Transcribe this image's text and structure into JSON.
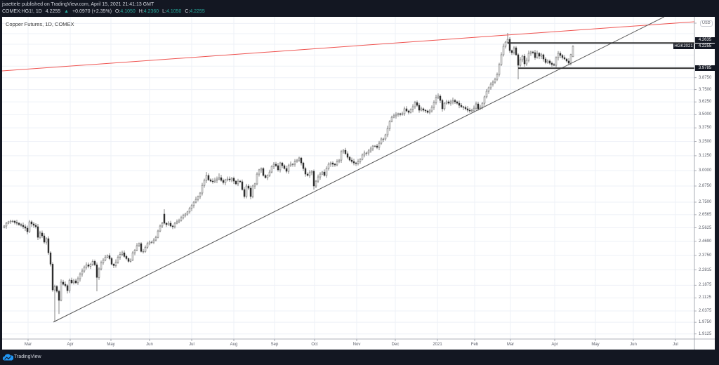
{
  "header": {
    "publisher_line": "jsaettele published on TradingView.com, April 15, 2021 21:41:13 GMT",
    "symbol": "COMEX:HG1!, 1D",
    "last": "4.2255",
    "arrow": "▲",
    "change": "+0.0970 (+2.35%)",
    "ohlc": [
      {
        "k": "O:",
        "v": "4.1050"
      },
      {
        "k": "H:",
        "v": "4.2360"
      },
      {
        "k": "L:",
        "v": "4.1050"
      },
      {
        "k": "C:",
        "v": "4.2255"
      }
    ]
  },
  "chart": {
    "title": "Copper Futures, 1D, COMEX",
    "currency": "USD",
    "price_boxes": {
      "ray_high": "4.2635",
      "last_price": "4.2255",
      "contract": "HGK2021",
      "ray_low": "3.9785"
    }
  },
  "footer": {
    "brand": "TradingView"
  },
  "colors": {
    "background": "#131722",
    "up_value": "#26a69a",
    "resistance_line": "#ef5350",
    "trendline": "#555555",
    "ray": "#333333"
  },
  "chart_data": {
    "type": "bar",
    "style": "candlestick (daily OHLC, approx. closes read from chart)",
    "title": "Copper Futures, 1D, COMEX",
    "xlabel": "",
    "ylabel": "USD",
    "y_scale": "log",
    "ylim": [
      1.886,
      4.583
    ],
    "grid": true,
    "legend": "none",
    "x_ticks": [
      "Mar",
      "Apr",
      "May",
      "Jun",
      "Jul",
      "Aug",
      "Sep",
      "Oct",
      "Nov",
      "Dec",
      "2021",
      "Feb",
      "Mar",
      "Apr",
      "May",
      "Jun",
      "Jul"
    ],
    "y_ticks": [
      "3.8750",
      "3.7500",
      "3.6250",
      "3.5000",
      "3.3750",
      "3.2500",
      "3.1250",
      "3.0000",
      "2.8750",
      "2.7500",
      "2.6565",
      "2.5625",
      "2.4690",
      "2.3750",
      "2.2815",
      "2.1875",
      "2.1125",
      "2.0375",
      "1.9750",
      "1.9125"
    ],
    "series": [
      {
        "name": "COMEX:HG1! daily close (approx)",
        "values": [
          2.575,
          2.595,
          2.605,
          2.61,
          2.61,
          2.6,
          2.595,
          2.585,
          2.58,
          2.57,
          2.56,
          2.535,
          2.605,
          2.59,
          2.58,
          2.57,
          2.496,
          2.526,
          2.506,
          2.463,
          2.487,
          2.392,
          2.318,
          2.159,
          2.18,
          2.151,
          2.098,
          2.206,
          2.193,
          2.185,
          2.155,
          2.218,
          2.202,
          2.214,
          2.202,
          2.227,
          2.257,
          2.275,
          2.3,
          2.314,
          2.305,
          2.318,
          2.336,
          2.314,
          2.235,
          2.288,
          2.327,
          2.345,
          2.364,
          2.373,
          2.354,
          2.318,
          2.309,
          2.332,
          2.364,
          2.382,
          2.392,
          2.368,
          2.354,
          2.336,
          2.345,
          2.392,
          2.41,
          2.439,
          2.453,
          2.401,
          2.401,
          2.429,
          2.453,
          2.463,
          2.463,
          2.477,
          2.496,
          2.54,
          2.575,
          2.595,
          2.595,
          2.585,
          2.595,
          2.575,
          2.57,
          2.595,
          2.605,
          2.615,
          2.635,
          2.651,
          2.661,
          2.677,
          2.703,
          2.724,
          2.75,
          2.771,
          2.793,
          2.82,
          2.88,
          2.92,
          2.96,
          2.925,
          2.914,
          2.909,
          2.92,
          2.931,
          2.942,
          2.92,
          2.903,
          2.925,
          2.931,
          2.925,
          2.937,
          2.914,
          2.892,
          2.914,
          2.909,
          2.847,
          2.793,
          2.875,
          2.858,
          2.793,
          2.875,
          2.892,
          2.971,
          3.006,
          3.017,
          2.96,
          2.942,
          2.96,
          2.988,
          3.035,
          3.053,
          3.041,
          3.006,
          3.064,
          3.041,
          3.017,
          2.994,
          3.041,
          3.053,
          3.053,
          3.076,
          3.088,
          3.106,
          3.064,
          3.017,
          2.971,
          2.96,
          2.983,
          2.994,
          2.875,
          2.914,
          2.948,
          2.971,
          2.988,
          2.96,
          3.017,
          3.053,
          3.064,
          3.053,
          3.047,
          3.076,
          3.088,
          3.161,
          3.173,
          3.143,
          3.112,
          3.088,
          3.076,
          3.064,
          3.059,
          3.076,
          3.094,
          3.131,
          3.149,
          3.149,
          3.167,
          3.185,
          3.21,
          3.21,
          3.198,
          3.235,
          3.273,
          3.273,
          3.311,
          3.369,
          3.435,
          3.475,
          3.489,
          3.502,
          3.509,
          3.502,
          3.509,
          3.557,
          3.536,
          3.522,
          3.55,
          3.577,
          3.619,
          3.591,
          3.543,
          3.557,
          3.543,
          3.536,
          3.522,
          3.536,
          3.571,
          3.619,
          3.669,
          3.683,
          3.64,
          3.557,
          3.612,
          3.626,
          3.612,
          3.626,
          3.64,
          3.626,
          3.612,
          3.591,
          3.577,
          3.571,
          3.557,
          3.543,
          3.536,
          3.543,
          3.563,
          3.605,
          3.557,
          3.571,
          3.612,
          3.676,
          3.733,
          3.769,
          3.806,
          3.828,
          3.858,
          3.91,
          4.018,
          4.128,
          4.225,
          4.274,
          4.307,
          4.176,
          4.152,
          4.208,
          4.128,
          4.01,
          4.072,
          4.112,
          4.025,
          4.065,
          4.144,
          4.16,
          4.152,
          4.096,
          4.144,
          4.112,
          4.128,
          4.08,
          4.041,
          4.057,
          4.033,
          4.018,
          4.01,
          4.096,
          4.144,
          4.12,
          4.096,
          4.08,
          4.057,
          4.033,
          4.129,
          4.2255
        ]
      }
    ],
    "ohlc_overrides": {
      "24": {
        "l": 1.976
      },
      "26": {
        "l": 2.021
      },
      "44": {
        "l": 2.151
      },
      "76": {
        "o": 2.661,
        "h": 2.697
      },
      "96": {
        "h": 2.988
      },
      "102": {
        "h": 2.977
      },
      "147": {
        "l": 2.847
      },
      "239": {
        "h": 4.383
      },
      "244": {
        "l": 3.858
      },
      "270": {
        "o": 4.105,
        "h": 4.236,
        "l": 4.105
      }
    },
    "annotations": {
      "trendlines": [
        {
          "name": "resistance-line",
          "color": "#ef5350",
          "from": {
            "bar": -1,
            "price": 3.948
          },
          "to": {
            "bar": 327.67,
            "price": 4.521
          }
        },
        {
          "name": "support-trendline",
          "color": "#555555",
          "from": {
            "bar": 23.33,
            "price": 1.976
          },
          "to": {
            "bar": 313.3,
            "price": 4.582
          }
        }
      ],
      "horizontal_rays": [
        {
          "name": "range-high-ray",
          "price": 4.2635,
          "from_bar": 239
        },
        {
          "name": "range-low-ray",
          "price": 3.9785,
          "from_bar": 244
        }
      ],
      "last_price": 4.2255,
      "contract_label": "HGK2021"
    }
  }
}
